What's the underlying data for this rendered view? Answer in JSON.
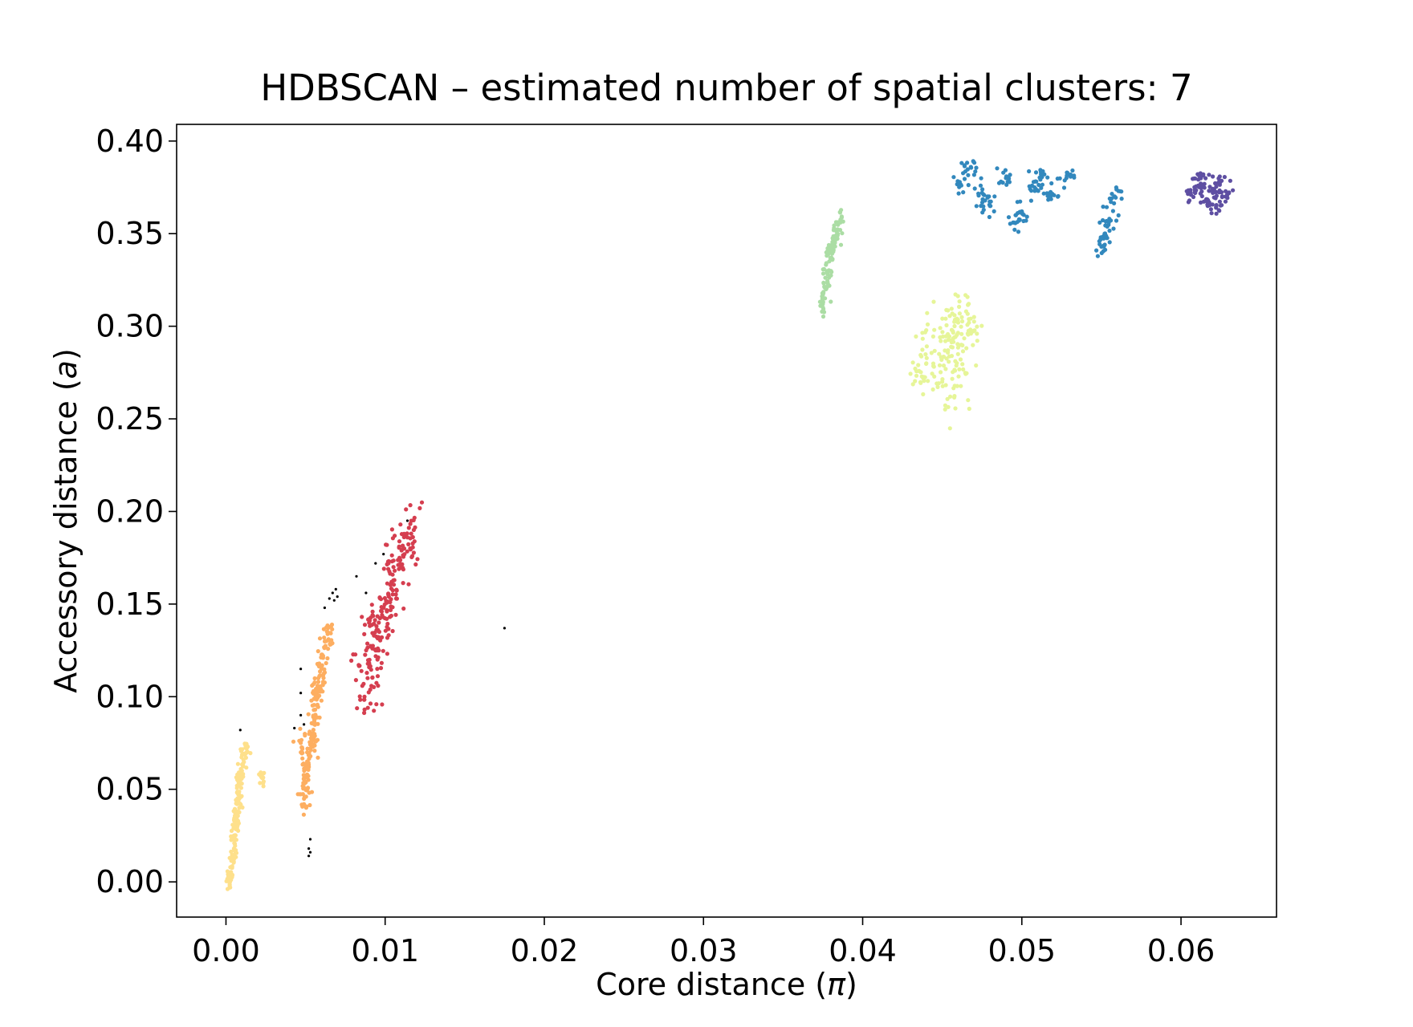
{
  "chart_data": {
    "type": "scatter",
    "title": "HDBSCAN – estimated number of spatial clusters: 7",
    "xlabel_main": "Core distance (",
    "xlabel_symbol": "π",
    "xlabel_close": ")",
    "ylabel_main": "Accessory distance (",
    "ylabel_symbol": "a",
    "ylabel_close": ")",
    "xlim": [
      -0.0031,
      0.066
    ],
    "ylim": [
      -0.019,
      0.409
    ],
    "xticks": [
      0.0,
      0.01,
      0.02,
      0.03,
      0.04,
      0.05,
      0.06
    ],
    "xtick_labels": [
      "0.00",
      "0.01",
      "0.02",
      "0.03",
      "0.04",
      "0.05",
      "0.06"
    ],
    "yticks": [
      0.0,
      0.05,
      0.1,
      0.15,
      0.2,
      0.25,
      0.3,
      0.35,
      0.4
    ],
    "ytick_labels": [
      "0.00",
      "0.05",
      "0.10",
      "0.15",
      "0.20",
      "0.25",
      "0.30",
      "0.35",
      "0.40"
    ],
    "grid": false,
    "legend": false,
    "noise_color": "#000000",
    "clusters": [
      {
        "color": "#fee08b",
        "spread": [
          0.00025,
          0.006
        ],
        "points": [
          [
            0.0002,
            0.0
          ],
          [
            0.0003,
            0.005
          ],
          [
            0.0004,
            0.012
          ],
          [
            0.0005,
            0.018
          ],
          [
            0.0005,
            0.025
          ],
          [
            0.0006,
            0.03
          ],
          [
            0.0006,
            0.036
          ],
          [
            0.0007,
            0.042
          ],
          [
            0.0008,
            0.048
          ],
          [
            0.0009,
            0.055
          ],
          [
            0.001,
            0.06
          ],
          [
            0.0011,
            0.066
          ],
          [
            0.0013,
            0.072
          ],
          [
            0.0022,
            0.057
          ]
        ]
      },
      {
        "color": "#fdae61",
        "spread": [
          0.00035,
          0.009
        ],
        "points": [
          [
            0.0049,
            0.042
          ],
          [
            0.005,
            0.05
          ],
          [
            0.0051,
            0.058
          ],
          [
            0.0051,
            0.065
          ],
          [
            0.0053,
            0.072
          ],
          [
            0.0054,
            0.079
          ],
          [
            0.0055,
            0.086
          ],
          [
            0.0056,
            0.093
          ],
          [
            0.0057,
            0.1
          ],
          [
            0.0058,
            0.108
          ],
          [
            0.006,
            0.115
          ],
          [
            0.0061,
            0.122
          ],
          [
            0.0063,
            0.13
          ],
          [
            0.0064,
            0.137
          ],
          [
            0.0047,
            0.075
          ]
        ]
      },
      {
        "color": "#d53e4f",
        "spread": [
          0.0009,
          0.012
        ],
        "points": [
          [
            0.0087,
            0.1
          ],
          [
            0.0089,
            0.11
          ],
          [
            0.009,
            0.118
          ],
          [
            0.0092,
            0.126
          ],
          [
            0.0093,
            0.133
          ],
          [
            0.0096,
            0.14
          ],
          [
            0.0099,
            0.148
          ],
          [
            0.0102,
            0.155
          ],
          [
            0.0104,
            0.162
          ],
          [
            0.0106,
            0.168
          ],
          [
            0.0109,
            0.175
          ],
          [
            0.0112,
            0.18
          ],
          [
            0.0114,
            0.186
          ],
          [
            0.0118,
            0.19
          ],
          [
            0.0096,
            0.125
          ],
          [
            0.0101,
            0.142
          ]
        ]
      },
      {
        "color": "#abdda4",
        "spread": [
          0.0003,
          0.008
        ],
        "points": [
          [
            0.0375,
            0.312
          ],
          [
            0.0377,
            0.32
          ],
          [
            0.0378,
            0.328
          ],
          [
            0.0379,
            0.335
          ],
          [
            0.038,
            0.34
          ],
          [
            0.0382,
            0.345
          ],
          [
            0.0384,
            0.35
          ],
          [
            0.0386,
            0.356
          ]
        ]
      },
      {
        "color": "#e6f598",
        "spread": [
          0.0011,
          0.012
        ],
        "points": [
          [
            0.044,
            0.28
          ],
          [
            0.0448,
            0.285
          ],
          [
            0.0452,
            0.292
          ],
          [
            0.0456,
            0.298
          ],
          [
            0.046,
            0.302
          ],
          [
            0.0465,
            0.308
          ],
          [
            0.045,
            0.27
          ],
          [
            0.0455,
            0.262
          ],
          [
            0.0458,
            0.276
          ],
          [
            0.0462,
            0.29
          ],
          [
            0.047,
            0.305
          ],
          [
            0.0445,
            0.298
          ],
          [
            0.0438,
            0.272
          ]
        ]
      },
      {
        "color": "#3288bd",
        "spread": [
          0.0005,
          0.006
        ],
        "points": [
          [
            0.0468,
            0.386
          ],
          [
            0.0475,
            0.372
          ],
          [
            0.048,
            0.365
          ],
          [
            0.049,
            0.38
          ],
          [
            0.0495,
            0.356
          ],
          [
            0.05,
            0.362
          ],
          [
            0.0508,
            0.375
          ],
          [
            0.0512,
            0.382
          ],
          [
            0.0518,
            0.37
          ],
          [
            0.0528,
            0.38
          ],
          [
            0.055,
            0.343
          ],
          [
            0.0552,
            0.35
          ],
          [
            0.0555,
            0.358
          ],
          [
            0.0558,
            0.37
          ],
          [
            0.0462,
            0.376
          ]
        ]
      },
      {
        "color": "#5e4fa2",
        "spread": [
          0.0005,
          0.004
        ],
        "points": [
          [
            0.0606,
            0.372
          ],
          [
            0.0612,
            0.376
          ],
          [
            0.0617,
            0.368
          ],
          [
            0.062,
            0.372
          ],
          [
            0.0624,
            0.378
          ],
          [
            0.0628,
            0.37
          ],
          [
            0.0622,
            0.364
          ],
          [
            0.0614,
            0.382
          ]
        ]
      }
    ],
    "noise_points": [
      [
        0.0009,
        0.082
      ],
      [
        0.0043,
        0.083
      ],
      [
        0.0047,
        0.115
      ],
      [
        0.0047,
        0.102
      ],
      [
        0.0047,
        0.09
      ],
      [
        0.0049,
        0.085
      ],
      [
        0.0053,
        0.023
      ],
      [
        0.0052,
        0.018
      ],
      [
        0.0052,
        0.014
      ],
      [
        0.0053,
        0.016
      ],
      [
        0.0065,
        0.153
      ],
      [
        0.0067,
        0.156
      ],
      [
        0.0068,
        0.152
      ],
      [
        0.0069,
        0.158
      ],
      [
        0.007,
        0.154
      ],
      [
        0.0082,
        0.165
      ],
      [
        0.0088,
        0.156
      ],
      [
        0.0094,
        0.172
      ],
      [
        0.0099,
        0.177
      ],
      [
        0.0114,
        0.195
      ],
      [
        0.0175,
        0.137
      ],
      [
        0.0062,
        0.148
      ]
    ]
  }
}
